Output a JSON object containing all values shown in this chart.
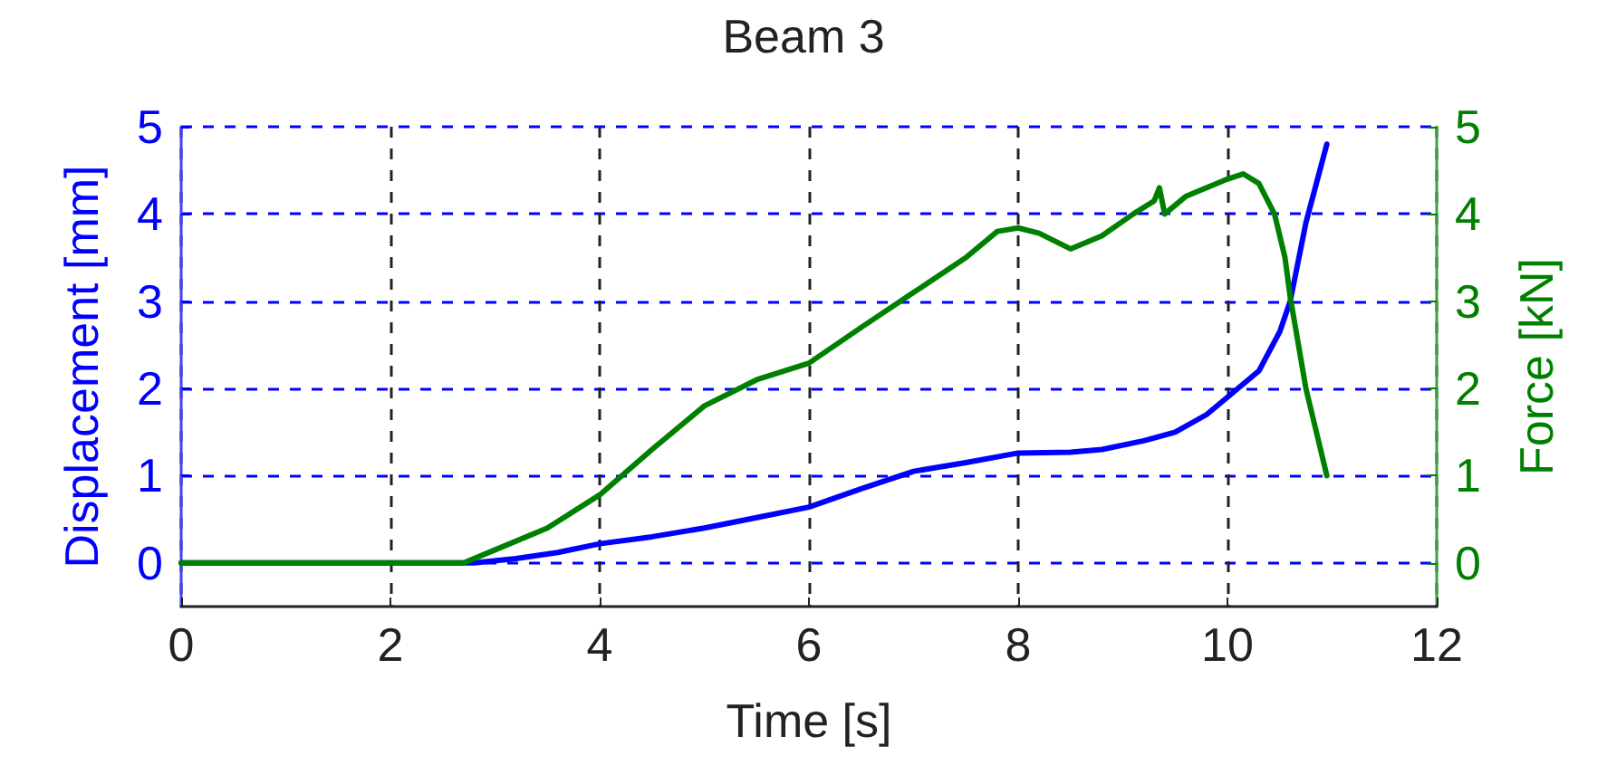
{
  "chart_data": {
    "type": "line",
    "title": "Beam 3",
    "xlabel": "Time [s]",
    "ylabel": "Displacement [mm]",
    "y2label": "Force [kN]",
    "xlim": [
      0,
      12
    ],
    "xticks": [
      0,
      2,
      4,
      6,
      8,
      10,
      12
    ],
    "ylim": [
      -0.5,
      5
    ],
    "yticks": [
      0,
      1,
      2,
      3,
      4,
      5
    ],
    "y2lim": [
      -0.5,
      5
    ],
    "y2ticks": [
      0,
      1,
      2,
      3,
      4,
      5
    ],
    "grid": true,
    "marker": "none",
    "line_style": "solid",
    "series": [
      {
        "color": "#0000ff",
        "x": [
          0,
          2.8,
          3.2,
          3.6,
          4,
          4.5,
          5,
          5.5,
          6,
          6.5,
          7,
          7.5,
          8,
          8.5,
          8.8,
          9.2,
          9.5,
          9.8,
          10,
          10.3,
          10.5,
          10.6,
          10.75,
          10.85,
          10.95
        ],
        "values": [
          0,
          0,
          0.05,
          0.12,
          0.22,
          0.3,
          0.4,
          0.52,
          0.64,
          0.85,
          1.05,
          1.15,
          1.26,
          1.27,
          1.3,
          1.4,
          1.5,
          1.7,
          1.9,
          2.2,
          2.65,
          3.0,
          3.9,
          4.35,
          4.8
        ]
      },
      {
        "color": "#008000",
        "axis": "y2",
        "x": [
          0,
          2.7,
          3,
          3.5,
          4,
          4.5,
          5,
          5.5,
          6,
          6.5,
          7,
          7.5,
          7.8,
          8,
          8.2,
          8.5,
          8.8,
          9.1,
          9.3,
          9.35,
          9.4,
          9.6,
          10,
          10.15,
          10.3,
          10.45,
          10.55,
          10.6,
          10.75,
          10.95
        ],
        "values": [
          0,
          0,
          0.15,
          0.4,
          0.78,
          1.3,
          1.8,
          2.1,
          2.29,
          2.7,
          3.1,
          3.5,
          3.8,
          3.84,
          3.78,
          3.6,
          3.75,
          4.0,
          4.15,
          4.3,
          4.0,
          4.2,
          4.4,
          4.46,
          4.35,
          4.0,
          3.5,
          3.05,
          2.0,
          1.0
        ]
      }
    ]
  }
}
